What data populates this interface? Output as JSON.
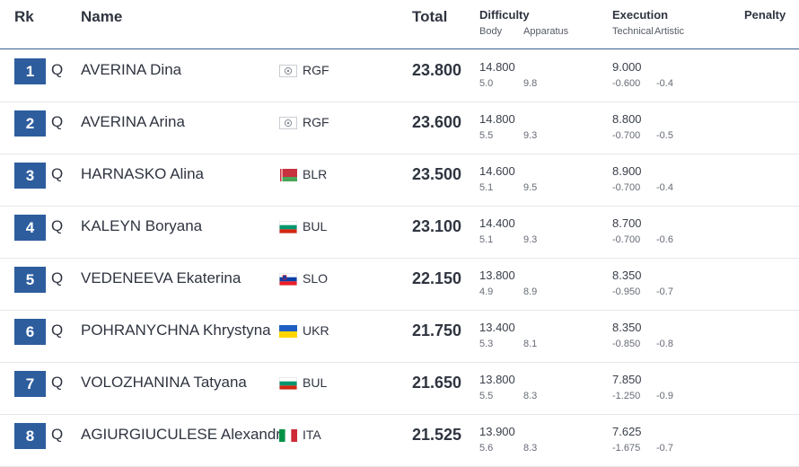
{
  "header": {
    "rk": "Rk",
    "name": "Name",
    "total": "Total",
    "difficulty": "Difficulty",
    "body": "Body",
    "apparatus": "Apparatus",
    "execution": "Execution",
    "technical": "Technical",
    "artistic": "Artistic",
    "penalty": "Penalty"
  },
  "rows": [
    {
      "rank": "1",
      "q": "Q",
      "name": "AVERINA Dina",
      "flag": "rgf-flag-icon",
      "country": "RGF",
      "total": "23.800",
      "difficulty": "14.800",
      "body": "5.0",
      "apparatus": "9.8",
      "execution": "9.000",
      "technical": "-0.600",
      "artistic": "-0.4"
    },
    {
      "rank": "2",
      "q": "Q",
      "name": "AVERINA Arina",
      "flag": "rgf-flag-icon",
      "country": "RGF",
      "total": "23.600",
      "difficulty": "14.800",
      "body": "5.5",
      "apparatus": "9.3",
      "execution": "8.800",
      "technical": "-0.700",
      "artistic": "-0.5"
    },
    {
      "rank": "3",
      "q": "Q",
      "name": "HARNASKO Alina",
      "flag": "blr-flag-icon",
      "country": "BLR",
      "total": "23.500",
      "difficulty": "14.600",
      "body": "5.1",
      "apparatus": "9.5",
      "execution": "8.900",
      "technical": "-0.700",
      "artistic": "-0.4"
    },
    {
      "rank": "4",
      "q": "Q",
      "name": "KALEYN Boryana",
      "flag": "bul-flag-icon",
      "country": "BUL",
      "total": "23.100",
      "difficulty": "14.400",
      "body": "5.1",
      "apparatus": "9.3",
      "execution": "8.700",
      "technical": "-0.700",
      "artistic": "-0.6"
    },
    {
      "rank": "5",
      "q": "Q",
      "name": "VEDENEEVA Ekaterina",
      "flag": "slo-flag-icon",
      "country": "SLO",
      "total": "22.150",
      "difficulty": "13.800",
      "body": "4.9",
      "apparatus": "8.9",
      "execution": "8.350",
      "technical": "-0.950",
      "artistic": "-0.7"
    },
    {
      "rank": "6",
      "q": "Q",
      "name": "POHRANYCHNA Khrystyna",
      "flag": "ukr-flag-icon",
      "country": "UKR",
      "total": "21.750",
      "difficulty": "13.400",
      "body": "5.3",
      "apparatus": "8.1",
      "execution": "8.350",
      "technical": "-0.850",
      "artistic": "-0.8"
    },
    {
      "rank": "7",
      "q": "Q",
      "name": "VOLOZHANINA Tatyana",
      "flag": "bul-flag-icon",
      "country": "BUL",
      "total": "21.650",
      "difficulty": "13.800",
      "body": "5.5",
      "apparatus": "8.3",
      "execution": "7.850",
      "technical": "-1.250",
      "artistic": "-0.9"
    },
    {
      "rank": "8",
      "q": "Q",
      "name": "AGIURGIUCULESE Alexandra",
      "flag": "ita-flag-icon",
      "country": "ITA",
      "total": "21.525",
      "difficulty": "13.900",
      "body": "5.6",
      "apparatus": "8.3",
      "execution": "7.625",
      "technical": "-1.675",
      "artistic": "-0.7"
    }
  ]
}
